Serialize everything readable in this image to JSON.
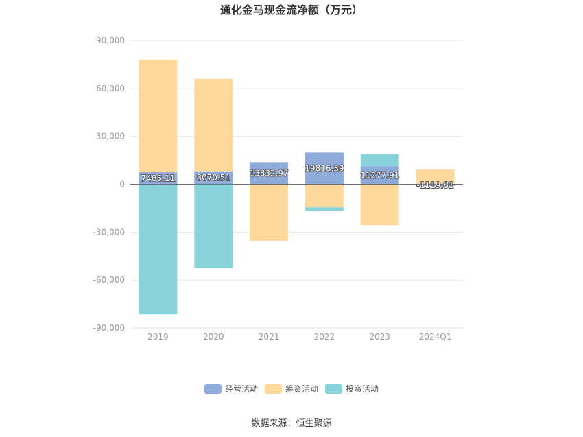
{
  "chart_data": {
    "type": "bar",
    "stacked": true,
    "title": "通化金马现金流净额（万元）",
    "categories": [
      "2019",
      "2020",
      "2021",
      "2022",
      "2023",
      "2024Q1"
    ],
    "series": [
      {
        "name": "经营活动",
        "color": "#8eabdc",
        "values": [
          7486.11,
          8070.51,
          13832.97,
          19816.39,
          11277.91,
          -1119.81
        ],
        "labels": [
          "7486.11",
          "8070.51",
          "13832.97",
          "19816.39",
          "11277.91",
          "-1119.81"
        ]
      },
      {
        "name": "筹资活动",
        "color": "#ffd99b",
        "values": [
          70500,
          58000,
          -35500,
          -14500,
          -25700,
          9200
        ]
      },
      {
        "name": "投资活动",
        "color": "#88d4da",
        "values": [
          -81500,
          -52500,
          0,
          -2200,
          7700,
          0
        ]
      }
    ],
    "yticks": [
      "90,000",
      "60,000",
      "30,000",
      "0",
      "-30,000",
      "-60,000",
      "-90,000"
    ],
    "ylim": [
      -90000,
      90000
    ],
    "grid": true,
    "legend_position": "bottom-center",
    "source": "数据来源：恒生聚源"
  }
}
